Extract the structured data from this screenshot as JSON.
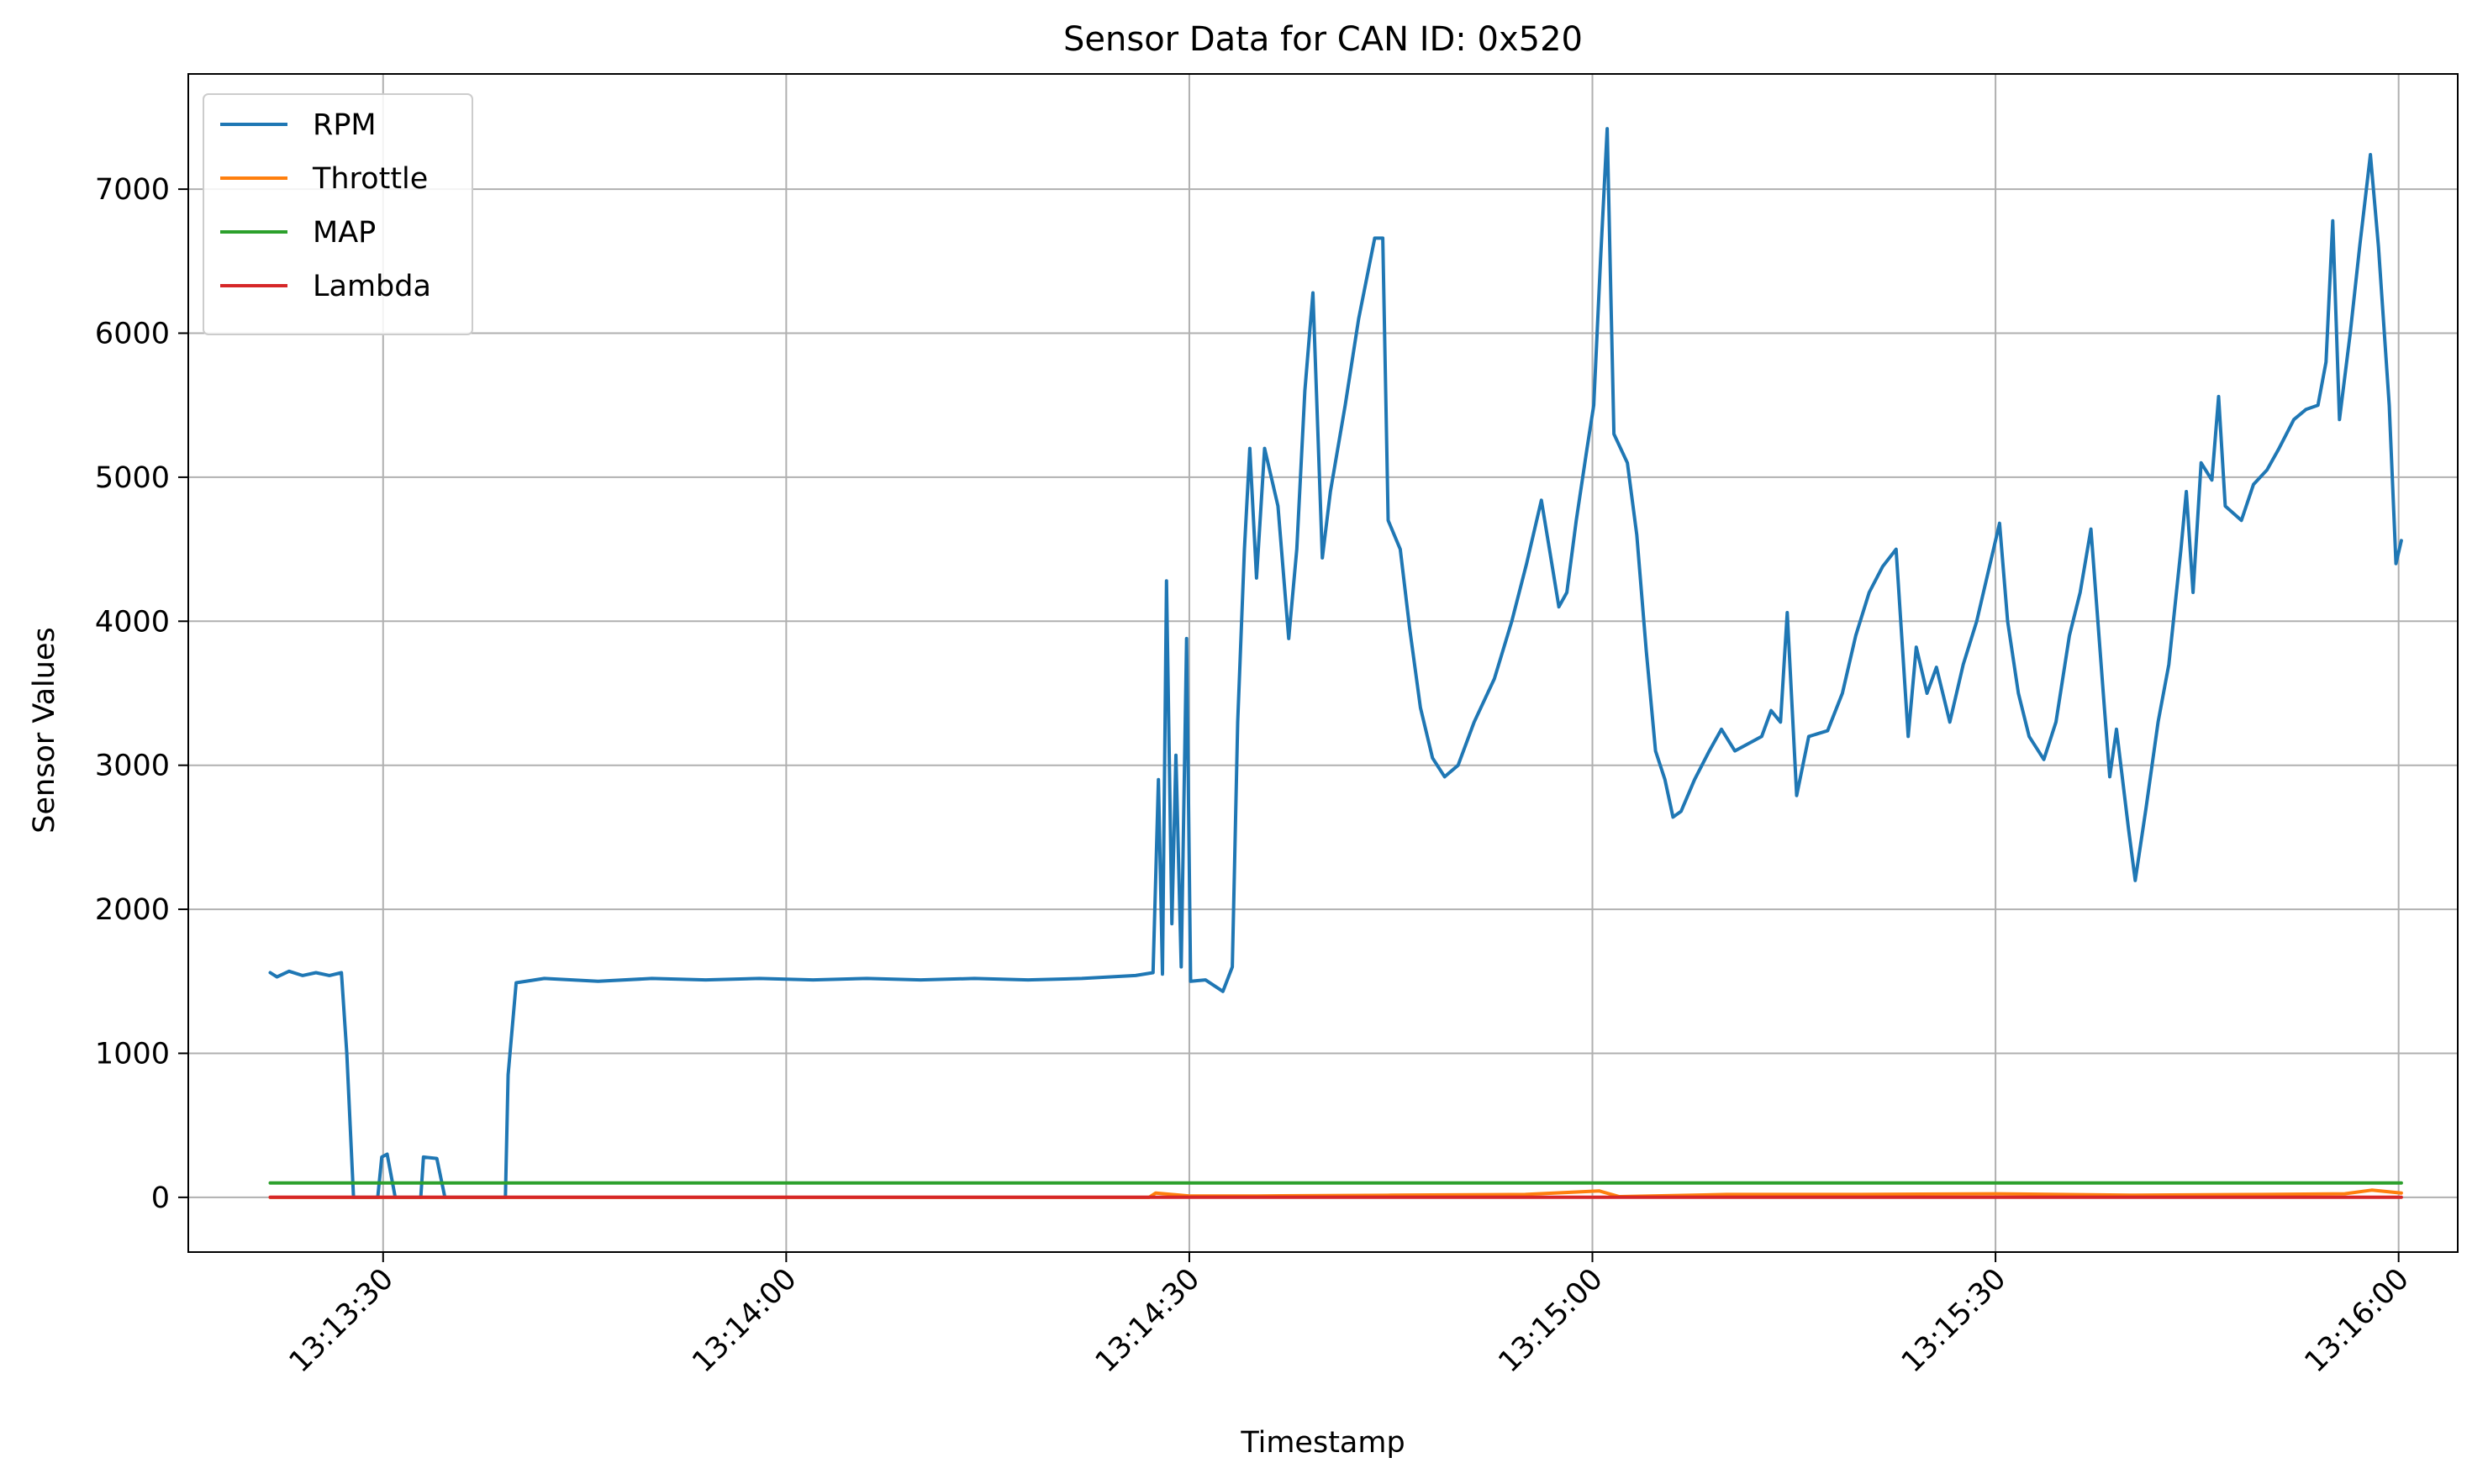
{
  "chart_data": {
    "type": "line",
    "title": "Sensor Data for CAN ID: 0x520",
    "xlabel": "Timestamp",
    "ylabel": "Sensor Values",
    "x_range": [
      "13:13:15.5",
      "13:16:04.4"
    ],
    "ylim": [
      -380,
      7800
    ],
    "x_ticks": [
      {
        "t": "13:13:30",
        "label": "13:13:30"
      },
      {
        "t": "13:14:00",
        "label": "13:14:00"
      },
      {
        "t": "13:14:30",
        "label": "13:14:30"
      },
      {
        "t": "13:15:00",
        "label": "13:15:00"
      },
      {
        "t": "13:15:30",
        "label": "13:15:30"
      },
      {
        "t": "13:16:00",
        "label": "13:16:00"
      }
    ],
    "y_ticks": [
      0,
      1000,
      2000,
      3000,
      4000,
      5000,
      6000,
      7000
    ],
    "grid": true,
    "legend_position": "top-left",
    "series": [
      {
        "name": "RPM",
        "color": "#1f77b4",
        "points": [
          [
            "13:13:21.6",
            1560
          ],
          [
            "13:13:22.1",
            1530
          ],
          [
            "13:13:23.0",
            1570
          ],
          [
            "13:13:24.0",
            1540
          ],
          [
            "13:13:25.0",
            1560
          ],
          [
            "13:13:26.0",
            1540
          ],
          [
            "13:13:26.9",
            1560
          ],
          [
            "13:13:27.3",
            1000
          ],
          [
            "13:13:27.8",
            0
          ],
          [
            "13:13:29.6",
            0
          ],
          [
            "13:13:29.9",
            280
          ],
          [
            "13:13:30.3",
            300
          ],
          [
            "13:13:30.9",
            0
          ],
          [
            "13:13:32.8",
            0
          ],
          [
            "13:13:33.0",
            280
          ],
          [
            "13:13:34.0",
            270
          ],
          [
            "13:13:34.6",
            0
          ],
          [
            "13:13:39.1",
            0
          ],
          [
            "13:13:39.3",
            850
          ],
          [
            "13:13:39.9",
            1490
          ],
          [
            "13:13:42.0",
            1520
          ],
          [
            "13:13:46.0",
            1500
          ],
          [
            "13:13:50.0",
            1520
          ],
          [
            "13:13:54.0",
            1510
          ],
          [
            "13:13:58.0",
            1520
          ],
          [
            "13:14:02.0",
            1510
          ],
          [
            "13:14:06.0",
            1520
          ],
          [
            "13:14:10.0",
            1510
          ],
          [
            "13:14:14.0",
            1520
          ],
          [
            "13:14:18.0",
            1510
          ],
          [
            "13:14:22.0",
            1520
          ],
          [
            "13:14:26.0",
            1540
          ],
          [
            "13:14:27.3",
            1560
          ],
          [
            "13:14:27.7",
            2900
          ],
          [
            "13:14:28.0",
            1550
          ],
          [
            "13:14:28.3",
            4280
          ],
          [
            "13:14:28.7",
            1900
          ],
          [
            "13:14:29.0",
            3070
          ],
          [
            "13:14:29.4",
            1600
          ],
          [
            "13:14:29.8",
            3880
          ],
          [
            "13:14:30.1",
            1500
          ],
          [
            "13:14:31.2",
            1510
          ],
          [
            "13:14:32.5",
            1430
          ],
          [
            "13:14:33.2",
            1600
          ],
          [
            "13:14:33.6",
            3300
          ],
          [
            "13:14:34.1",
            4500
          ],
          [
            "13:14:34.5",
            5200
          ],
          [
            "13:14:35.0",
            4300
          ],
          [
            "13:14:35.6",
            5200
          ],
          [
            "13:14:36.6",
            4800
          ],
          [
            "13:14:37.4",
            3880
          ],
          [
            "13:14:38.0",
            4500
          ],
          [
            "13:14:38.6",
            5600
          ],
          [
            "13:14:39.2",
            6280
          ],
          [
            "13:14:39.9",
            4440
          ],
          [
            "13:14:40.5",
            4900
          ],
          [
            "13:14:41.6",
            5500
          ],
          [
            "13:14:42.6",
            6100
          ],
          [
            "13:14:43.8",
            6660
          ],
          [
            "13:14:44.4",
            6660
          ],
          [
            "13:14:44.8",
            4700
          ],
          [
            "13:14:45.7",
            4500
          ],
          [
            "13:14:46.4",
            3950
          ],
          [
            "13:14:47.2",
            3400
          ],
          [
            "13:14:48.1",
            3050
          ],
          [
            "13:14:49.0",
            2920
          ],
          [
            "13:14:50.0",
            3000
          ],
          [
            "13:14:51.2",
            3300
          ],
          [
            "13:14:52.7",
            3600
          ],
          [
            "13:14:54.0",
            4000
          ],
          [
            "13:14:55.1",
            4400
          ],
          [
            "13:14:56.2",
            4840
          ],
          [
            "13:14:56.8",
            4500
          ],
          [
            "13:14:57.5",
            4100
          ],
          [
            "13:14:58.1",
            4200
          ],
          [
            "13:14:58.8",
            4700
          ],
          [
            "13:14:59.6",
            5200
          ],
          [
            "13:15:00.1",
            5500
          ],
          [
            "13:15:00.6",
            6500
          ],
          [
            "13:15:01.1",
            7420
          ],
          [
            "13:15:01.6",
            5300
          ],
          [
            "13:15:02.6",
            5100
          ],
          [
            "13:15:03.3",
            4600
          ],
          [
            "13:15:04.0",
            3800
          ],
          [
            "13:15:04.7",
            3100
          ],
          [
            "13:15:05.4",
            2900
          ],
          [
            "13:15:06.0",
            2640
          ],
          [
            "13:15:06.6",
            2680
          ],
          [
            "13:15:07.6",
            2900
          ],
          [
            "13:15:08.7",
            3100
          ],
          [
            "13:15:09.6",
            3250
          ],
          [
            "13:15:10.6",
            3100
          ],
          [
            "13:15:11.6",
            3150
          ],
          [
            "13:15:12.6",
            3200
          ],
          [
            "13:15:13.3",
            3380
          ],
          [
            "13:15:14.0",
            3300
          ],
          [
            "13:15:14.5",
            4060
          ],
          [
            "13:15:15.2",
            2790
          ],
          [
            "13:15:16.1",
            3200
          ],
          [
            "13:15:17.5",
            3240
          ],
          [
            "13:15:18.6",
            3500
          ],
          [
            "13:15:19.6",
            3900
          ],
          [
            "13:15:20.6",
            4200
          ],
          [
            "13:15:21.6",
            4380
          ],
          [
            "13:15:22.6",
            4500
          ],
          [
            "13:15:23.5",
            3200
          ],
          [
            "13:15:24.1",
            3820
          ],
          [
            "13:15:24.9",
            3500
          ],
          [
            "13:15:25.6",
            3680
          ],
          [
            "13:15:26.6",
            3300
          ],
          [
            "13:15:27.6",
            3700
          ],
          [
            "13:15:28.6",
            4000
          ],
          [
            "13:15:29.6",
            4400
          ],
          [
            "13:15:30.3",
            4680
          ],
          [
            "13:15:30.9",
            4000
          ],
          [
            "13:15:31.7",
            3500
          ],
          [
            "13:15:32.5",
            3200
          ],
          [
            "13:15:33.6",
            3040
          ],
          [
            "13:15:34.5",
            3300
          ],
          [
            "13:15:35.5",
            3900
          ],
          [
            "13:15:36.3",
            4200
          ],
          [
            "13:15:37.1",
            4640
          ],
          [
            "13:15:38.1",
            3400
          ],
          [
            "13:15:38.5",
            2920
          ],
          [
            "13:15:39.0",
            3250
          ],
          [
            "13:15:39.9",
            2560
          ],
          [
            "13:15:40.4",
            2200
          ],
          [
            "13:15:41.2",
            2700
          ],
          [
            "13:15:42.1",
            3300
          ],
          [
            "13:15:42.9",
            3700
          ],
          [
            "13:15:43.8",
            4500
          ],
          [
            "13:15:44.2",
            4900
          ],
          [
            "13:15:44.7",
            4200
          ],
          [
            "13:15:45.3",
            5100
          ],
          [
            "13:15:46.1",
            4980
          ],
          [
            "13:15:46.6",
            5560
          ],
          [
            "13:15:47.1",
            4800
          ],
          [
            "13:15:48.3",
            4700
          ],
          [
            "13:15:49.2",
            4950
          ],
          [
            "13:15:50.2",
            5050
          ],
          [
            "13:15:51.1",
            5200
          ],
          [
            "13:15:52.2",
            5400
          ],
          [
            "13:15:53.1",
            5470
          ],
          [
            "13:15:54.0",
            5500
          ],
          [
            "13:15:54.6",
            5800
          ],
          [
            "13:15:55.1",
            6780
          ],
          [
            "13:15:55.6",
            5400
          ],
          [
            "13:15:56.4",
            6000
          ],
          [
            "13:15:57.1",
            6600
          ],
          [
            "13:15:57.9",
            7240
          ],
          [
            "13:15:58.5",
            6600
          ],
          [
            "13:15:59.3",
            5500
          ],
          [
            "13:15:59.8",
            4400
          ],
          [
            "13:16:00.2",
            4560
          ]
        ]
      },
      {
        "name": "Throttle",
        "color": "#ff7f0e",
        "points": [
          [
            "13:13:21.6",
            0
          ],
          [
            "13:14:27.0",
            0
          ],
          [
            "13:14:27.5",
            30
          ],
          [
            "13:14:30.0",
            10
          ],
          [
            "13:14:35.0",
            10
          ],
          [
            "13:14:45.0",
            15
          ],
          [
            "13:14:55.0",
            20
          ],
          [
            "13:15:00.5",
            45
          ],
          [
            "13:15:02.0",
            5
          ],
          [
            "13:15:10.0",
            20
          ],
          [
            "13:15:20.0",
            20
          ],
          [
            "13:15:30.0",
            25
          ],
          [
            "13:15:40.0",
            15
          ],
          [
            "13:15:50.0",
            20
          ],
          [
            "13:15:56.0",
            25
          ],
          [
            "13:15:58.0",
            50
          ],
          [
            "13:16:00.2",
            30
          ]
        ]
      },
      {
        "name": "MAP",
        "color": "#2ca02c",
        "points": [
          [
            "13:13:21.6",
            100
          ],
          [
            "13:16:00.2",
            100
          ]
        ]
      },
      {
        "name": "Lambda",
        "color": "#d62728",
        "points": [
          [
            "13:13:21.6",
            1
          ],
          [
            "13:16:00.2",
            1
          ]
        ]
      }
    ]
  }
}
